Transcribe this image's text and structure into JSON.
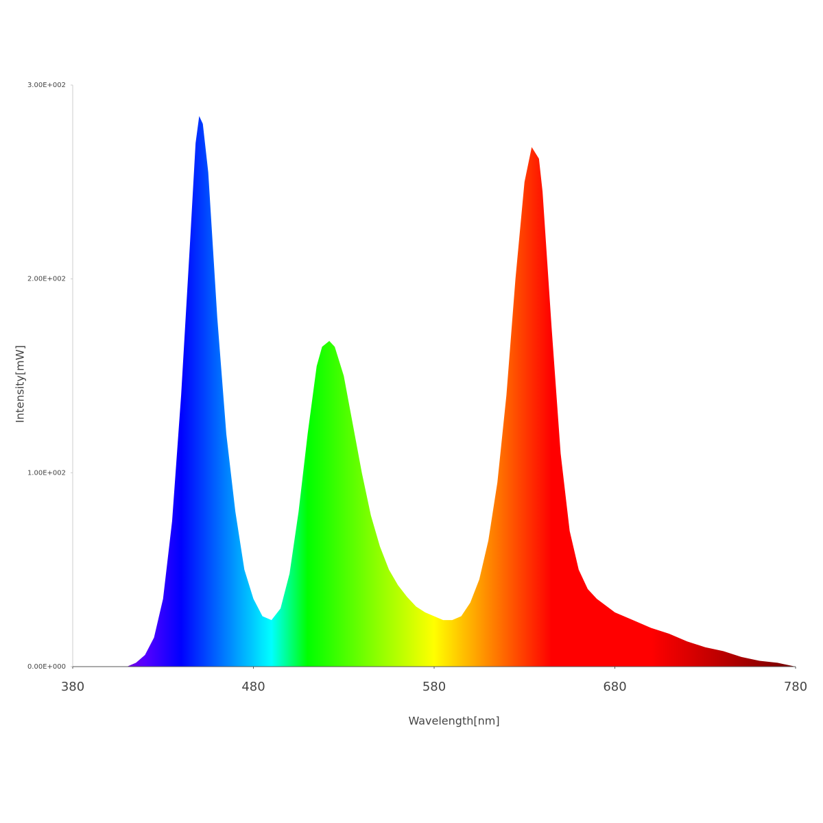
{
  "chart_data": {
    "type": "area",
    "x_label": "Wavelength[nm]",
    "y_label": "Intensity[mW]",
    "x": [
      380,
      390,
      400,
      410,
      415,
      420,
      425,
      430,
      435,
      440,
      445,
      448,
      450,
      452,
      455,
      460,
      465,
      470,
      475,
      480,
      485,
      490,
      495,
      500,
      505,
      510,
      515,
      518,
      522,
      525,
      530,
      535,
      540,
      545,
      550,
      555,
      560,
      565,
      570,
      575,
      580,
      585,
      590,
      595,
      600,
      605,
      610,
      615,
      620,
      625,
      630,
      634,
      638,
      640,
      645,
      650,
      655,
      660,
      665,
      670,
      680,
      690,
      700,
      710,
      720,
      730,
      740,
      750,
      760,
      770,
      780
    ],
    "values": [
      0,
      0,
      0,
      0,
      2,
      6,
      15,
      35,
      75,
      140,
      220,
      270,
      284,
      280,
      255,
      180,
      120,
      80,
      50,
      35,
      26,
      24,
      30,
      48,
      80,
      120,
      155,
      165,
      168,
      165,
      150,
      125,
      100,
      78,
      62,
      50,
      42,
      36,
      31,
      28,
      26,
      24,
      24,
      26,
      33,
      45,
      65,
      95,
      140,
      200,
      250,
      268,
      262,
      245,
      175,
      110,
      70,
      50,
      40,
      35,
      28,
      24,
      20,
      17,
      13,
      10,
      8,
      5,
      3,
      2,
      0
    ],
    "xlim": [
      380,
      780
    ],
    "ylim": [
      0,
      300
    ],
    "xticks": [
      380,
      480,
      580,
      680,
      780
    ],
    "yticks": [
      {
        "value": 0,
        "label": "0.00E+000"
      },
      {
        "value": 100,
        "label": "1.00E+002"
      },
      {
        "value": 200,
        "label": "2.00E+002"
      },
      {
        "value": 300,
        "label": "3.00E+002"
      }
    ],
    "fill": "spectrum",
    "grid": false
  }
}
